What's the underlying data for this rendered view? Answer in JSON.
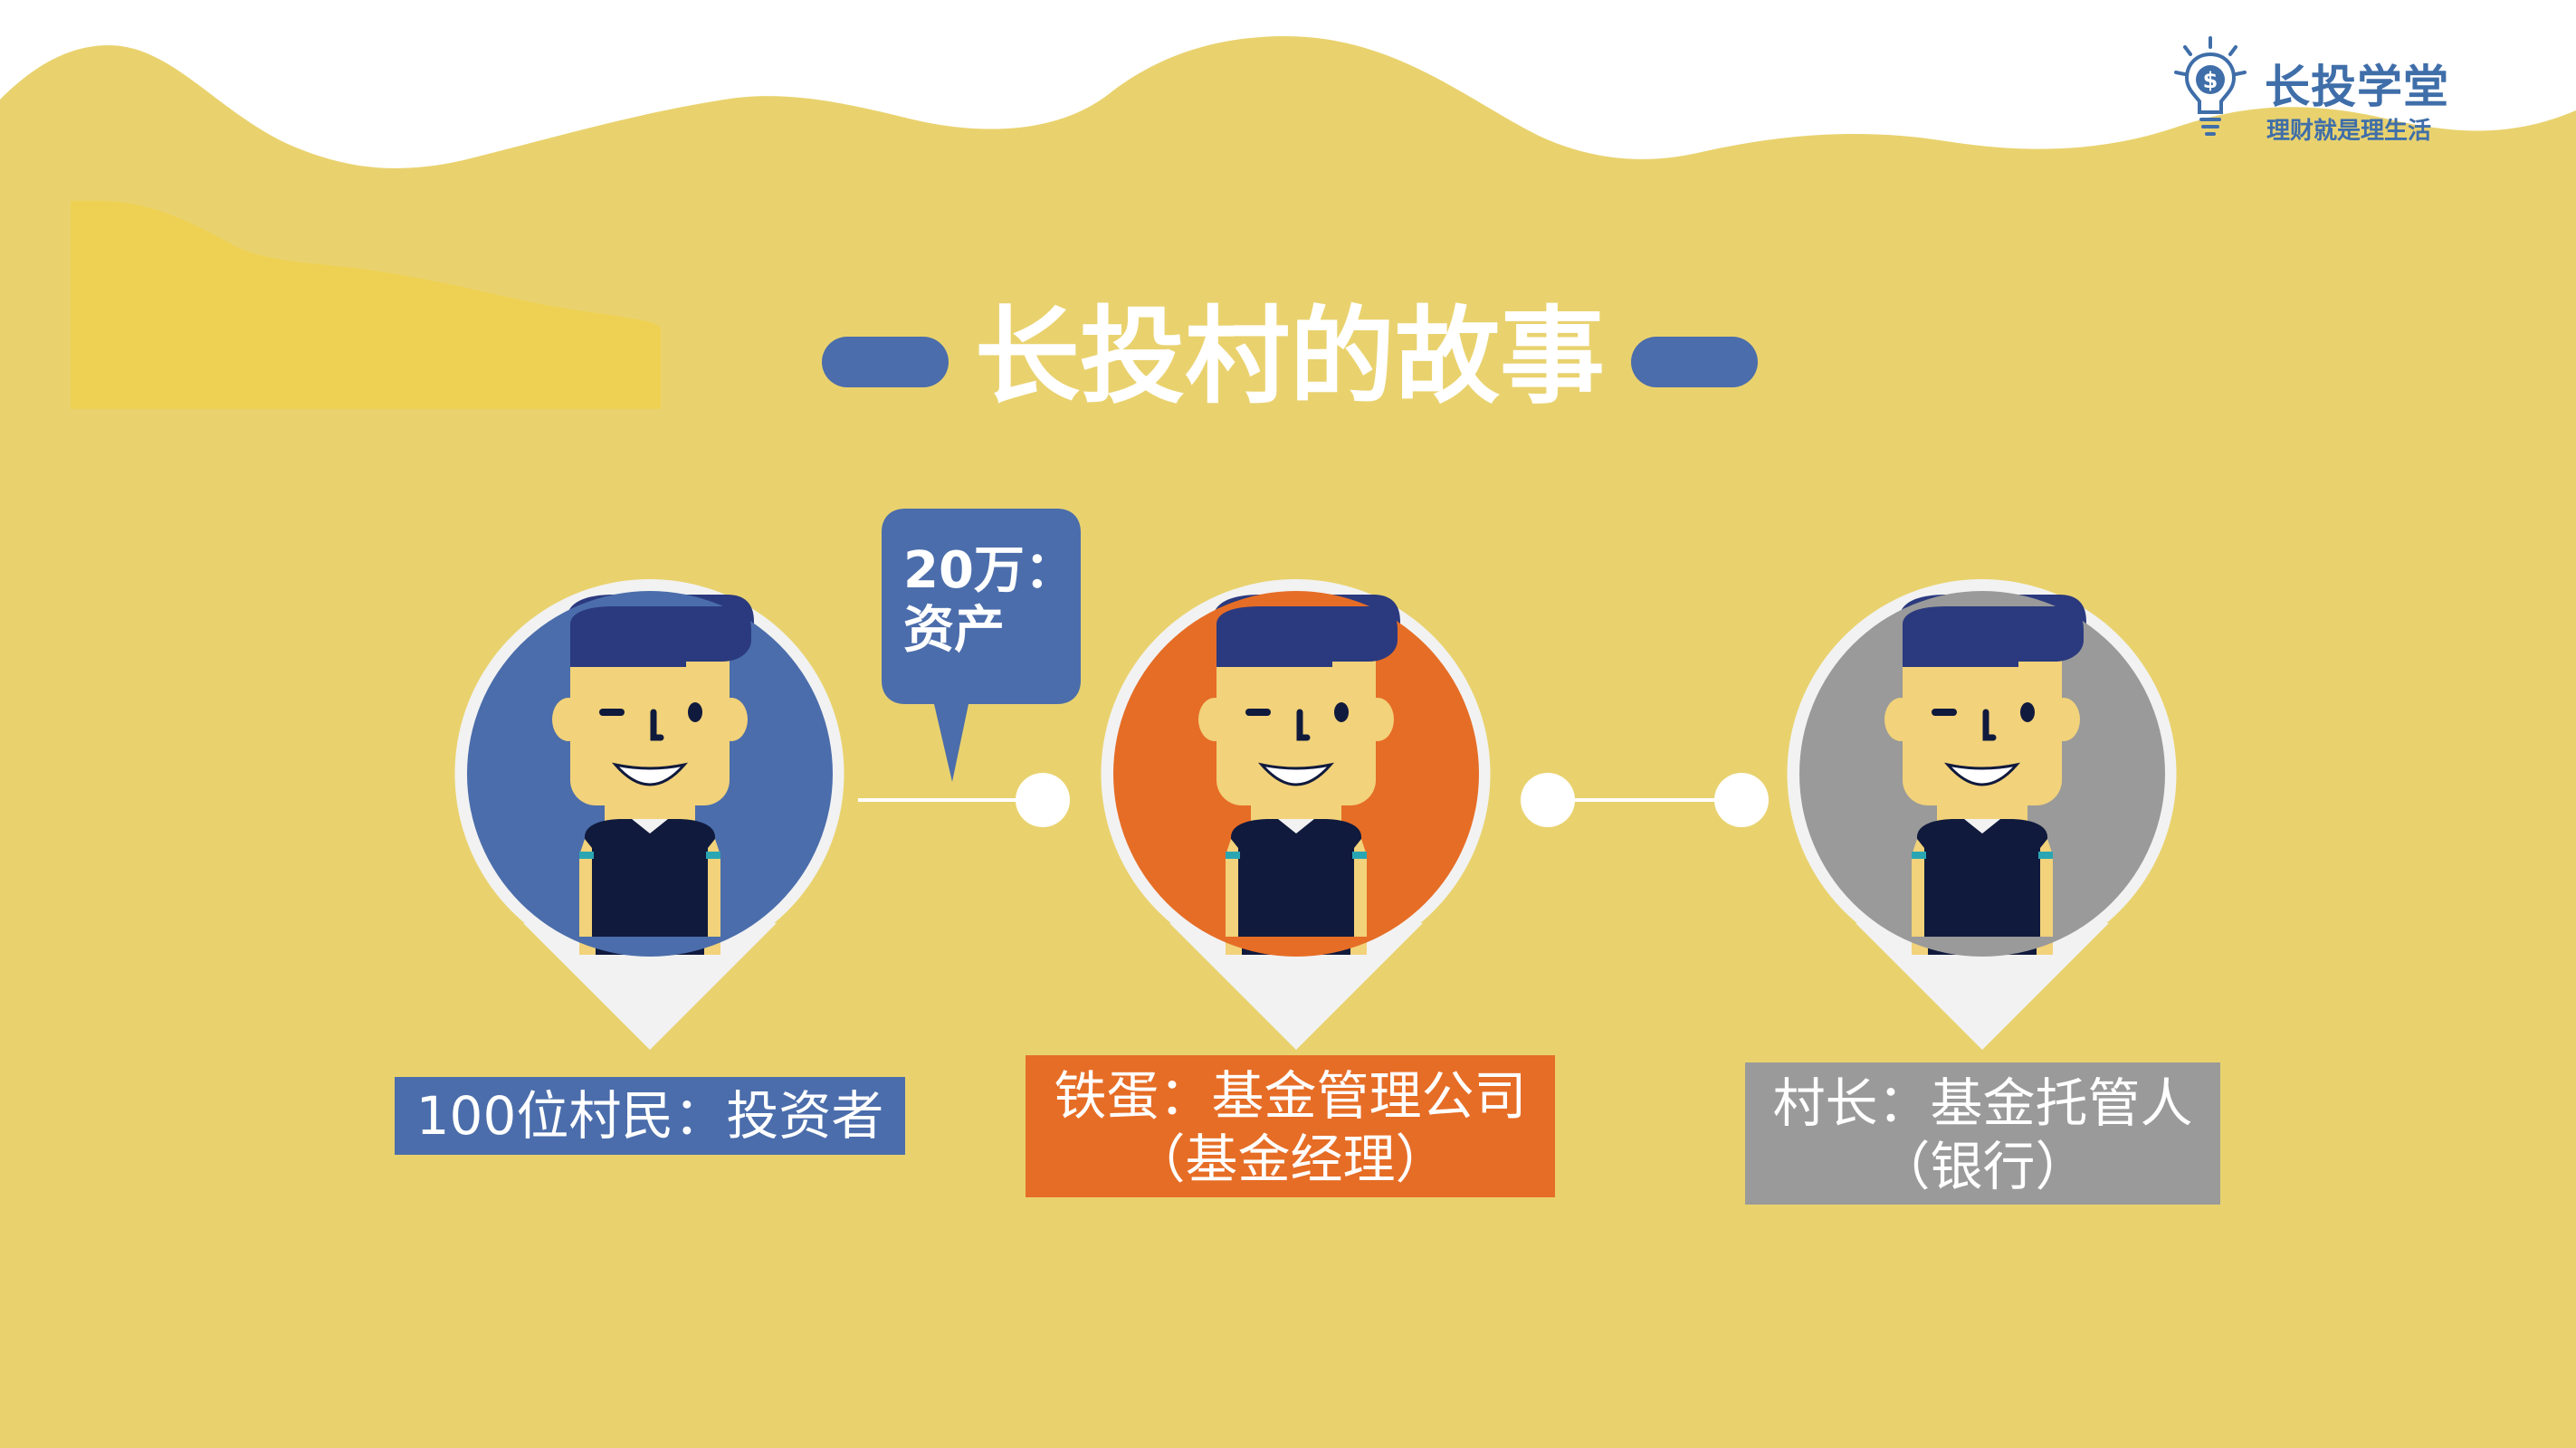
{
  "brand": {
    "name": "长投学堂",
    "slogan": "理财就是理生活",
    "icon": "lightbulb-dollar-icon",
    "color": "#3f6ea9"
  },
  "title": "长投村的故事",
  "bubble": {
    "line1": "20万：",
    "line2": "资产"
  },
  "roles": [
    {
      "line1": "100位村民：投资者",
      "color": "#4b6dab"
    },
    {
      "line1": "铁蛋：基金管理公司",
      "line2": "（基金经理）",
      "color": "#e66d26"
    },
    {
      "line1": "村长：基金托管人",
      "line2": "（银行）",
      "color": "#9a9a9a"
    }
  ],
  "colors": {
    "background": "#e9d26e",
    "accent_blue": "#4b6dab",
    "accent_orange": "#e66d26",
    "accent_gray": "#9a9a9a",
    "wave_white": "#ffffff"
  }
}
